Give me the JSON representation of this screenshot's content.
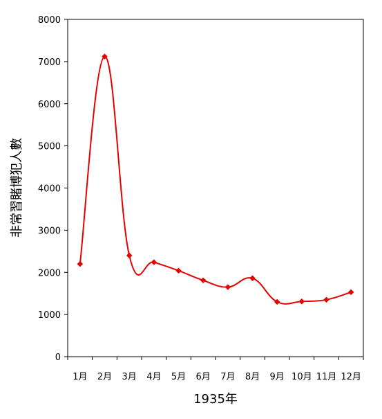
{
  "chart_data": {
    "type": "line",
    "title": "",
    "xlabel": "1935年",
    "ylabel": "非常習賭博犯人數",
    "categories": [
      "1月",
      "2月",
      "3月",
      "4月",
      "5月",
      "6月",
      "7月",
      "8月",
      "9月",
      "10月",
      "11月",
      "12月"
    ],
    "series": [
      {
        "values": [
          2200,
          7120,
          2400,
          2240,
          2040,
          1810,
          1650,
          1860,
          1300,
          1310,
          1350,
          1530
        ]
      }
    ],
    "ylim": [
      0,
      8000
    ],
    "yticks": [
      0,
      1000,
      2000,
      3000,
      4000,
      5000,
      6000,
      7000,
      8000
    ],
    "grid": false,
    "legend": "none",
    "line_color": "#e60000",
    "axis_color": "#000000"
  }
}
